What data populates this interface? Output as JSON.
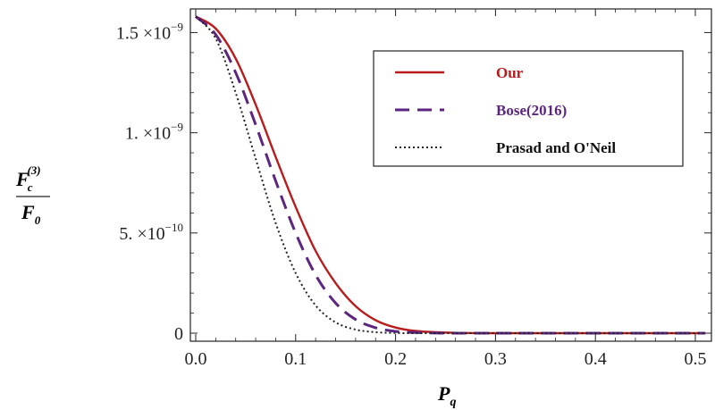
{
  "chart_data": {
    "type": "line",
    "xlabel": "P",
    "xlabel_sub": "q",
    "ylabel_num": "F",
    "ylabel_num_sub": "c",
    "ylabel_num_sup": "(3)",
    "ylabel_den": "F",
    "ylabel_den_sub": "0",
    "xlim": [
      0.0,
      0.51
    ],
    "ylim": [
      0.0,
      1.6e-09
    ],
    "x_ticks": [
      0.0,
      0.1,
      0.2,
      0.3,
      0.4,
      0.5
    ],
    "x_tick_labels": [
      "0.0",
      "0.1",
      "0.2",
      "0.3",
      "0.4",
      "0.5"
    ],
    "y_ticks": [
      {
        "value": 1.5e-09,
        "mant": "1.5",
        "exp": "−9"
      },
      {
        "value": 1e-09,
        "mant": "1.",
        "exp": "−9"
      },
      {
        "value": 5e-10,
        "mant": "5.",
        "exp": "−10"
      },
      {
        "value": 0,
        "mant": "0",
        "exp": ""
      }
    ],
    "y_times_sign": "×10",
    "legend_position": "top-right",
    "grid": false,
    "series": [
      {
        "name": "Our",
        "color": "#b81c1c",
        "style": "solid",
        "x": [
          0,
          0.02,
          0.04,
          0.06,
          0.08,
          0.1,
          0.12,
          0.14,
          0.16,
          0.18,
          0.2,
          0.22,
          0.25,
          0.3,
          0.35,
          0.4,
          0.45,
          0.5,
          0.51
        ],
        "y": [
          1.58e-09,
          1.52e-09,
          1.37e-09,
          1.14e-09,
          8.8e-10,
          6.3e-10,
          4.1e-10,
          2.5e-10,
          1.35e-10,
          6.5e-11,
          2.8e-11,
          1.1e-11,
          3e-12,
          0,
          0,
          0,
          0,
          0,
          0
        ]
      },
      {
        "name": "Bose(2016)",
        "color": "#5b2580",
        "style": "dashed",
        "x": [
          0,
          0.02,
          0.04,
          0.06,
          0.08,
          0.1,
          0.12,
          0.14,
          0.16,
          0.18,
          0.2,
          0.22,
          0.25,
          0.3,
          0.35,
          0.4,
          0.45,
          0.5,
          0.51
        ],
        "y": [
          1.58e-09,
          1.49e-09,
          1.3e-09,
          1.04e-09,
          7.6e-10,
          5e-10,
          2.9e-10,
          1.5e-10,
          6.8e-11,
          2.7e-11,
          9e-12,
          3e-12,
          0,
          0,
          0,
          0,
          0,
          0,
          0
        ]
      },
      {
        "name": "Prasad and O'Neil",
        "color": "#222222",
        "style": "dotted",
        "x": [
          0,
          0.02,
          0.04,
          0.06,
          0.08,
          0.1,
          0.12,
          0.14,
          0.16,
          0.18,
          0.2,
          0.22,
          0.25,
          0.3,
          0.35,
          0.4,
          0.45,
          0.5,
          0.51
        ],
        "y": [
          1.58e-09,
          1.47e-09,
          1.2e-09,
          8.7e-10,
          5.5e-10,
          3e-10,
          1.38e-10,
          5.4e-11,
          1.8e-11,
          5e-12,
          1e-12,
          0,
          0,
          0,
          0,
          0,
          0,
          0,
          0
        ]
      }
    ]
  }
}
